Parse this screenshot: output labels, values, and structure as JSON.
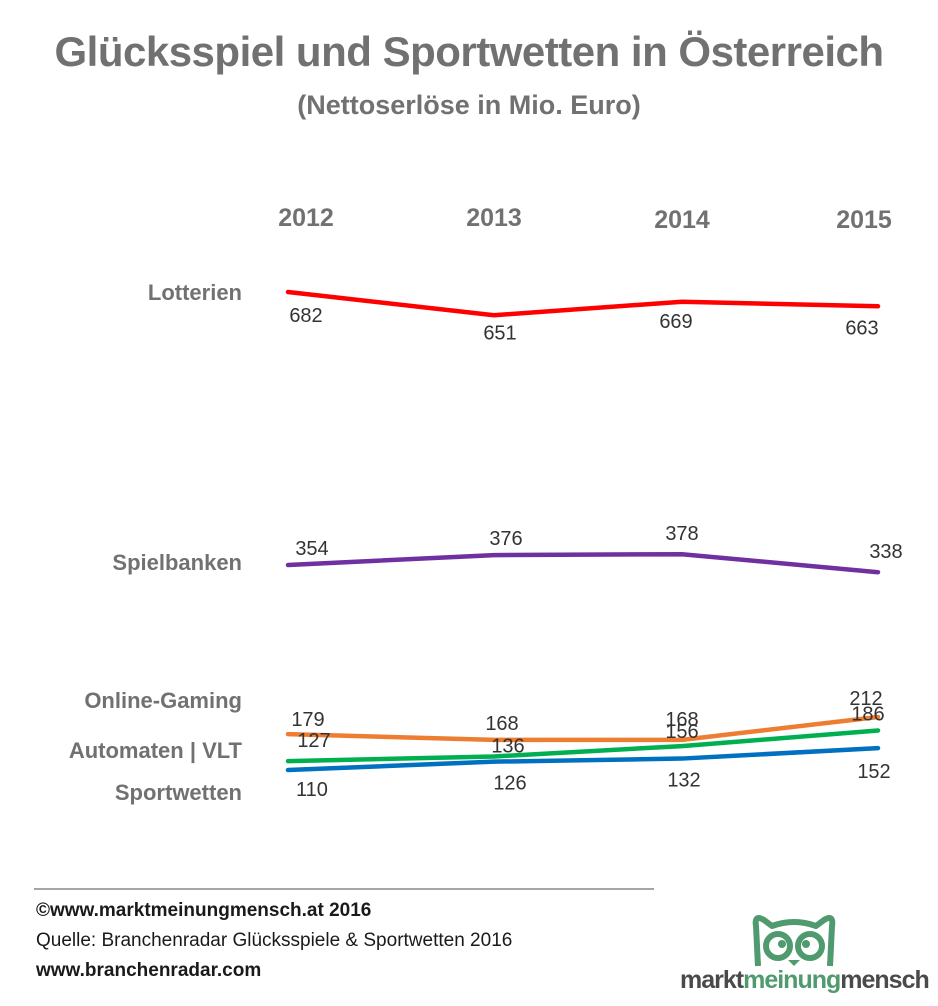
{
  "chart_data": {
    "type": "line",
    "title": "Glücksspiel und Sportwetten in Österreich",
    "subtitle": "(Nettoserlöse in Mio. Euro)",
    "xlabel": "",
    "ylabel": "",
    "categories": [
      "2012",
      "2013",
      "2014",
      "2015"
    ],
    "grid": false,
    "legend": "left, series labels beside lines",
    "series": [
      {
        "name": "Lotterien",
        "color": "#ff0000",
        "values": [
          682,
          651,
          669,
          663
        ]
      },
      {
        "name": "Spielbanken",
        "color": "#7030a0",
        "values": [
          354,
          376,
          378,
          338
        ]
      },
      {
        "name": "Online-Gaming",
        "color": "#ed7d31",
        "values": [
          179,
          168,
          168,
          212
        ]
      },
      {
        "name": "Automaten | VLT",
        "color": "#00b050",
        "values": [
          127,
          136,
          156,
          186
        ]
      },
      {
        "name": "Sportwetten",
        "color": "#0070c0",
        "values": [
          110,
          126,
          132,
          152
        ]
      }
    ]
  },
  "footer": {
    "copyright": "©www.marktmeinungmensch.at 2016",
    "source": "Quelle: Branchenradar Glücksspiele & Sportwetten 2016",
    "website": "www.branchenradar.com"
  },
  "logo": {
    "part1": "markt",
    "part2": "meinung",
    "part3": "mensch",
    "color": "#4f9a6e"
  }
}
